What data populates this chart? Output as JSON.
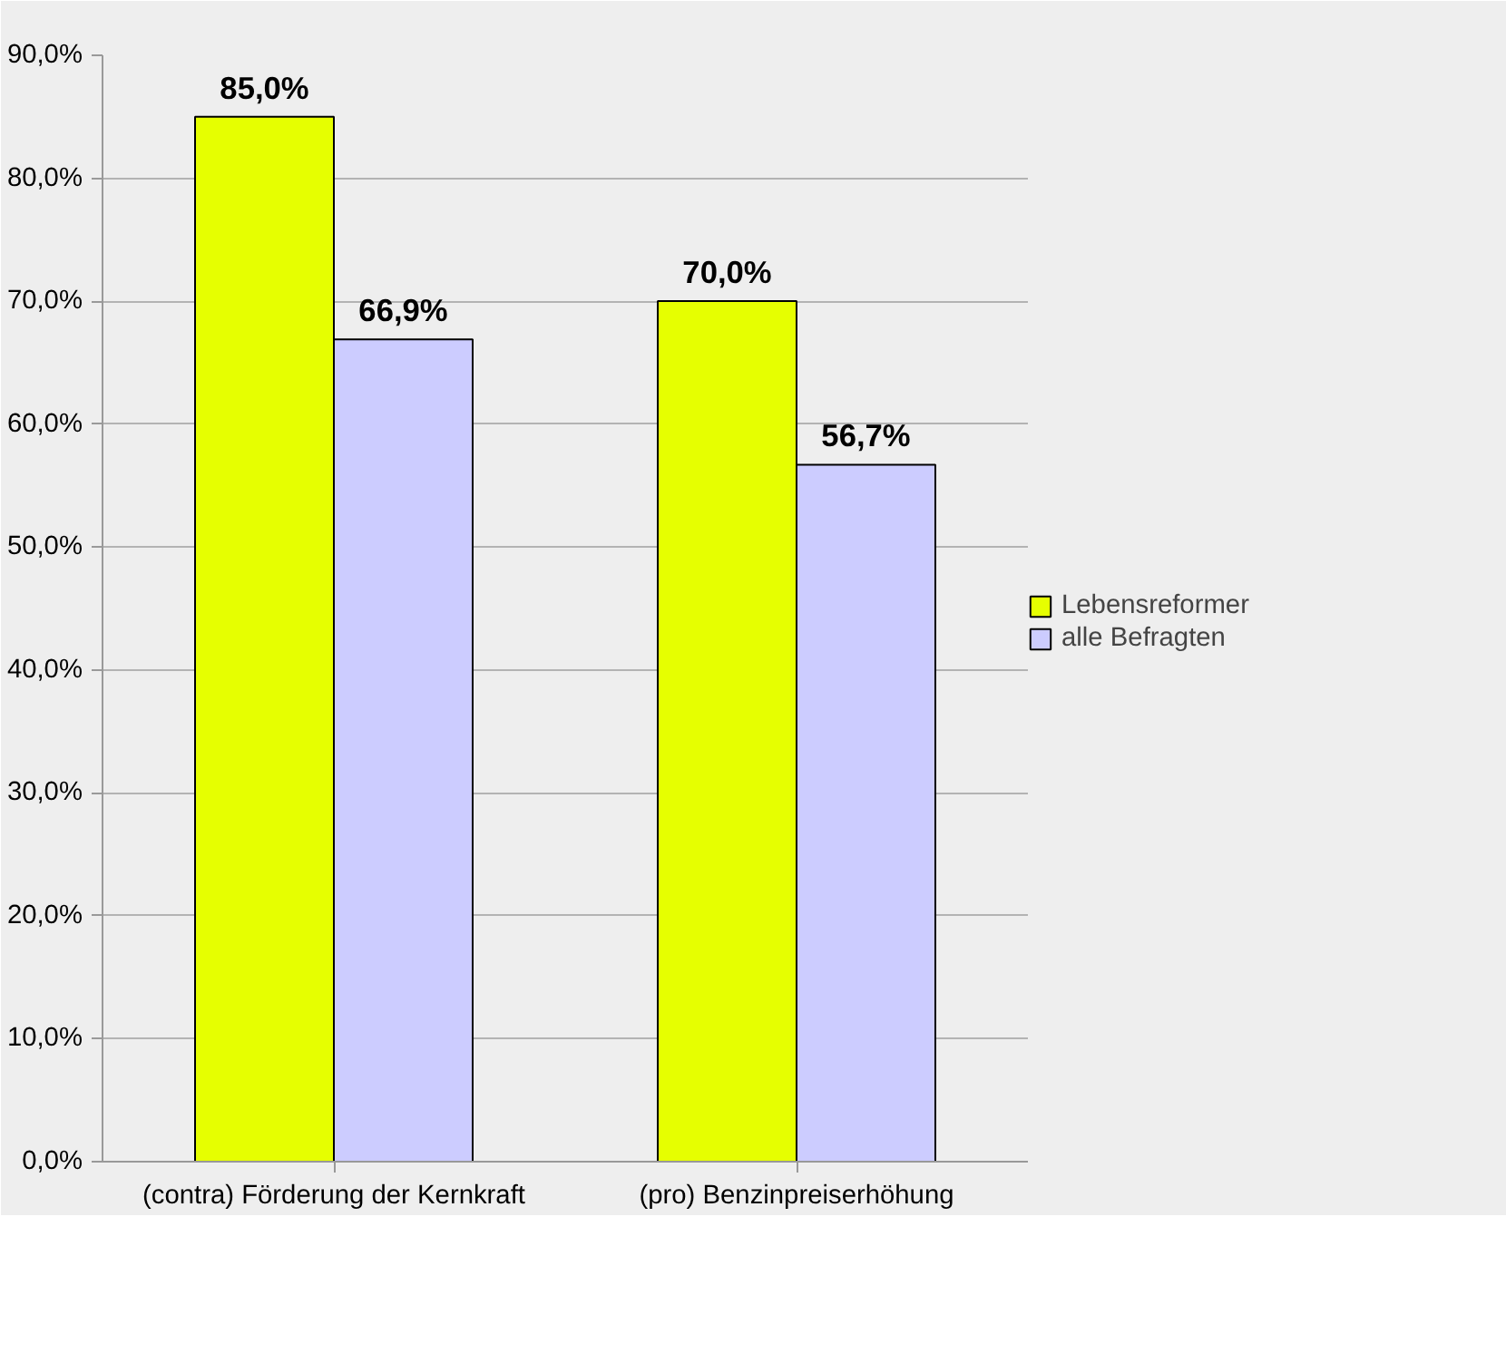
{
  "chart_data": {
    "type": "bar",
    "categories": [
      "(contra) Förderung der Kernkraft",
      "(pro) Benzinpreiserhöhung"
    ],
    "series": [
      {
        "name": "Lebensreformer",
        "color": "#e6ff00",
        "values": [
          85.0,
          70.0
        ],
        "value_labels": [
          "85,0%",
          "70,0%"
        ]
      },
      {
        "name": "alle Befragten",
        "color": "#ccccff",
        "values": [
          66.9,
          56.7
        ],
        "value_labels": [
          "66,9%",
          "56,7%"
        ]
      }
    ],
    "ylim": [
      0,
      90
    ],
    "yticks": [
      {
        "value": 0,
        "label": "0,0%"
      },
      {
        "value": 10,
        "label": "10,0%"
      },
      {
        "value": 20,
        "label": "20,0%"
      },
      {
        "value": 30,
        "label": "30,0%"
      },
      {
        "value": 40,
        "label": "40,0%"
      },
      {
        "value": 50,
        "label": "50,0%"
      },
      {
        "value": 60,
        "label": "60,0%"
      },
      {
        "value": 70,
        "label": "70,0%"
      },
      {
        "value": 80,
        "label": "80,0%"
      },
      {
        "value": 90,
        "label": "90,0%"
      }
    ],
    "grid": "y",
    "legend": "right"
  }
}
